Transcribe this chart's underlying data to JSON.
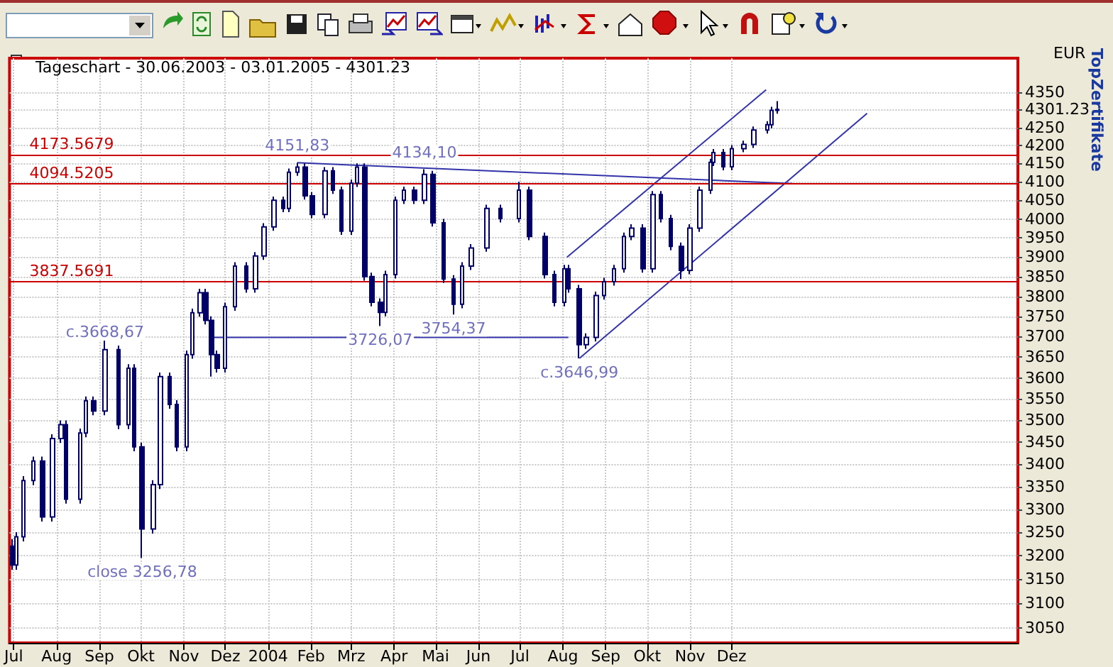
{
  "chart_data": {
    "type": "candlestick",
    "title": "Tageschart - 30.06.2003 - 03.01.2005 - 4301.23",
    "ylabel": "EUR",
    "color": "#000066",
    "x": [
      "2003-06-30",
      "2003-07-03",
      "2003-07-08",
      "2003-07-15",
      "2003-07-22",
      "2003-07-29",
      "2003-08-04",
      "2003-08-08",
      "2003-08-18",
      "2003-08-22",
      "2003-08-28",
      "2003-09-05",
      "2003-09-15",
      "2003-09-22",
      "2003-09-26",
      "2003-10-02",
      "2003-10-10",
      "2003-10-15",
      "2003-10-22",
      "2003-10-27",
      "2003-11-03",
      "2003-11-07",
      "2003-11-13",
      "2003-11-17",
      "2003-11-21",
      "2003-11-25",
      "2003-12-01",
      "2003-12-08",
      "2003-12-16",
      "2003-12-23",
      "2003-12-29",
      "2004-01-05",
      "2004-01-12",
      "2004-01-16",
      "2004-01-22",
      "2004-01-28",
      "2004-02-02",
      "2004-02-11",
      "2004-02-17",
      "2004-02-23",
      "2004-03-01",
      "2004-03-05",
      "2004-03-11",
      "2004-03-16",
      "2004-03-22",
      "2004-03-26",
      "2004-04-02",
      "2004-04-08",
      "2004-04-16",
      "2004-04-23",
      "2004-04-29",
      "2004-05-07",
      "2004-05-14",
      "2004-05-20",
      "2004-05-27",
      "2004-06-07",
      "2004-06-17",
      "2004-06-30",
      "2004-07-08",
      "2004-07-19",
      "2004-07-26",
      "2004-08-02",
      "2004-08-05",
      "2004-08-13",
      "2004-08-18",
      "2004-08-25",
      "2004-08-31",
      "2004-09-07",
      "2004-09-14",
      "2004-09-20",
      "2004-09-28",
      "2004-10-05",
      "2004-10-11",
      "2004-10-18",
      "2004-10-26",
      "2004-11-01",
      "2004-11-08",
      "2004-11-16",
      "2004-11-18",
      "2004-11-25",
      "2004-12-01",
      "2004-12-10",
      "2004-12-17",
      "2004-12-27",
      "2004-12-30",
      "2005-01-03"
    ],
    "ohlc": [
      [
        3220,
        3235,
        3170,
        3180
      ],
      [
        3180,
        3250,
        3170,
        3240
      ],
      [
        3240,
        3373,
        3230,
        3363
      ],
      [
        3363,
        3417,
        3353,
        3407
      ],
      [
        3407,
        3417,
        3273,
        3283
      ],
      [
        3283,
        3468,
        3273,
        3458
      ],
      [
        3458,
        3500,
        3448,
        3490
      ],
      [
        3490,
        3500,
        3312,
        3322
      ],
      [
        3322,
        3481,
        3312,
        3471
      ],
      [
        3471,
        3556,
        3461,
        3546
      ],
      [
        3546,
        3556,
        3512,
        3522
      ],
      [
        3522,
        3690,
        3512,
        3668
      ],
      [
        3668,
        3678,
        3480,
        3490
      ],
      [
        3490,
        3633,
        3480,
        3623
      ],
      [
        3623,
        3633,
        3429,
        3439
      ],
      [
        3439,
        3449,
        3195,
        3257
      ],
      [
        3257,
        3364,
        3247,
        3354
      ],
      [
        3354,
        3613,
        3344,
        3603
      ],
      [
        3603,
        3613,
        3527,
        3537
      ],
      [
        3537,
        3547,
        3429,
        3439
      ],
      [
        3439,
        3666,
        3429,
        3656
      ],
      [
        3656,
        3769,
        3646,
        3759
      ],
      [
        3759,
        3819,
        3749,
        3809
      ],
      [
        3809,
        3819,
        3730,
        3740
      ],
      [
        3740,
        3750,
        3603,
        3656
      ],
      [
        3656,
        3666,
        3613,
        3623
      ],
      [
        3623,
        3784,
        3613,
        3774
      ],
      [
        3774,
        3887,
        3764,
        3877
      ],
      [
        3877,
        3887,
        3809,
        3819
      ],
      [
        3819,
        3913,
        3809,
        3903
      ],
      [
        3903,
        3989,
        3893,
        3979
      ],
      [
        3979,
        4060,
        3969,
        4050
      ],
      [
        4050,
        4060,
        4018,
        4028
      ],
      [
        4028,
        4136,
        4018,
        4126
      ],
      [
        4126,
        4151.83,
        4116,
        4140
      ],
      [
        4140,
        4150,
        4052,
        4062
      ],
      [
        4062,
        4072,
        4002,
        4012
      ],
      [
        4012,
        4140,
        4002,
        4130
      ],
      [
        4130,
        4140,
        4067,
        4077
      ],
      [
        4077,
        4087,
        3958,
        3968
      ],
      [
        3968,
        4106,
        3958,
        4096
      ],
      [
        4096,
        4150,
        4086,
        4140
      ],
      [
        4140,
        4150,
        3840,
        3850
      ],
      [
        3850,
        3860,
        3775,
        3785
      ],
      [
        3785,
        3795,
        3726.07,
        3760
      ],
      [
        3760,
        3865,
        3750,
        3855
      ],
      [
        3855,
        4060,
        3845,
        4050
      ],
      [
        4050,
        4087,
        4040,
        4077
      ],
      [
        4077,
        4087,
        4040,
        4050
      ],
      [
        4050,
        4134.1,
        4040,
        4120
      ],
      [
        4120,
        4130,
        3980,
        3990
      ],
      [
        3990,
        4000,
        3834,
        3844
      ],
      [
        3844,
        3854,
        3754.37,
        3780
      ],
      [
        3780,
        3887,
        3770,
        3877
      ],
      [
        3877,
        3934,
        3867,
        3924
      ],
      [
        3924,
        4038,
        3914,
        4028
      ],
      [
        4028,
        4038,
        3991,
        4001
      ],
      [
        4001,
        4100,
        3991,
        4077
      ],
      [
        4077,
        4087,
        3944,
        3954
      ],
      [
        3954,
        3964,
        3845,
        3855
      ],
      [
        3855,
        3865,
        3775,
        3785
      ],
      [
        3785,
        3880,
        3775,
        3870
      ],
      [
        3870,
        3880,
        3809,
        3819
      ],
      [
        3819,
        3829,
        3646.99,
        3680
      ],
      [
        3680,
        3708,
        3670,
        3698
      ],
      [
        3698,
        3812,
        3688,
        3802
      ],
      [
        3802,
        3847,
        3792,
        3837
      ],
      [
        3837,
        3880,
        3827,
        3870
      ],
      [
        3870,
        3964,
        3860,
        3954
      ],
      [
        3954,
        3986,
        3944,
        3976
      ],
      [
        3976,
        3986,
        3860,
        3870
      ],
      [
        3870,
        4075,
        3860,
        4065
      ],
      [
        4065,
        4075,
        3991,
        4001
      ],
      [
        4001,
        4011,
        3918,
        3928
      ],
      [
        3928,
        3938,
        3844,
        3866
      ],
      [
        3866,
        3986,
        3856,
        3976
      ],
      [
        3976,
        4087,
        3966,
        4077
      ],
      [
        4077,
        4163,
        4067,
        4153
      ],
      [
        4153,
        4190,
        4143,
        4180
      ],
      [
        4180,
        4190,
        4131,
        4141
      ],
      [
        4141,
        4201,
        4131,
        4191
      ],
      [
        4191,
        4213,
        4181,
        4203
      ],
      [
        4203,
        4253,
        4193,
        4243
      ],
      [
        4243,
        4268,
        4233,
        4258
      ],
      [
        4258,
        4309,
        4248,
        4299
      ],
      [
        4299,
        4325,
        4289,
        4301.23
      ]
    ],
    "series": [
      {
        "type": "line",
        "color": "#3333aa",
        "x": [
          "2004-01-22",
          "2005-01-14"
        ],
        "values": [
          4152,
          4095
        ]
      },
      {
        "type": "line",
        "color": "#3333aa",
        "x": [
          "2003-11-20",
          "2004-08-05"
        ],
        "values": [
          3698,
          3698
        ]
      },
      {
        "type": "line",
        "color": "#3333aa",
        "x": [
          "2004-08-04",
          "2004-12-26"
        ],
        "values": [
          3900,
          4358
        ]
      },
      {
        "type": "line",
        "color": "#3333aa",
        "x": [
          "2004-08-13",
          "2005-03-09"
        ],
        "values": [
          3647,
          4290
        ]
      }
    ],
    "ref_lines": [
      {
        "axis": "y",
        "value": 4173.5679,
        "label": "4173.5679",
        "color": "#cc0000"
      },
      {
        "axis": "y",
        "value": 4094.5205,
        "label": "4094.5205",
        "color": "#cc0000"
      },
      {
        "axis": "y",
        "value": 3837.5691,
        "label": "3837.5691",
        "color": "#cc0000"
      }
    ],
    "annotations": [
      {
        "text": "4151,83",
        "x": "2004-01-22",
        "y": 4151.83
      },
      {
        "text": "4134,10",
        "x": "2004-04-23",
        "y": 4134.1
      },
      {
        "text": "c.3668,67",
        "x": "2003-09-05",
        "y": 3668.67
      },
      {
        "text": "close 3256,78",
        "x": "2003-10-02",
        "y": 3256.78
      },
      {
        "text": "3726,07",
        "x": "2004-03-22",
        "y": 3726.07
      },
      {
        "text": "3754,37",
        "x": "2004-05-14",
        "y": 3754.37
      },
      {
        "text": "c.3646,99",
        "x": "2004-08-13",
        "y": 3646.99
      },
      "TopZertifikate"
    ],
    "log": "y",
    "ylim": [
      3020,
      4450
    ],
    "yticks": [
      3050,
      3100,
      3150,
      3200,
      3250,
      3300,
      3350,
      3400,
      3450,
      3500,
      3550,
      3600,
      3650,
      3700,
      3750,
      3800,
      3850,
      3900,
      3950,
      4000,
      4050,
      4100,
      4150,
      4200,
      4250,
      4301.23,
      4350
    ],
    "xlim": [
      "2003-06-28",
      "2005-06-26"
    ],
    "xticks": [
      {
        "value": "2003-07-01",
        "label": "Jul"
      },
      {
        "value": "2003-08-01",
        "label": "Aug"
      },
      {
        "value": "2003-09-01",
        "label": "Sep"
      },
      {
        "value": "2003-10-01",
        "label": "Okt"
      },
      {
        "value": "2003-11-01",
        "label": "Nov"
      },
      {
        "value": "2003-12-01",
        "label": "Dez"
      },
      {
        "value": "2004-01-01",
        "label": "2004"
      },
      {
        "value": "2004-02-01",
        "label": "Feb"
      },
      {
        "value": "2004-03-01",
        "label": "Mrz"
      },
      {
        "value": "2004-04-01",
        "label": "Apr"
      },
      {
        "value": "2004-05-01",
        "label": "Mai"
      },
      {
        "value": "2004-06-01",
        "label": "Jun"
      },
      {
        "value": "2004-07-01",
        "label": "Jul"
      },
      {
        "value": "2004-08-01",
        "label": "Aug"
      },
      {
        "value": "2004-09-01",
        "label": "Sep"
      },
      {
        "value": "2004-10-01",
        "label": "Okt"
      },
      {
        "value": "2004-11-01",
        "label": "Nov"
      },
      {
        "value": "2004-12-01",
        "label": "Dez"
      }
    ],
    "grid": true,
    "marker": "none"
  }
}
